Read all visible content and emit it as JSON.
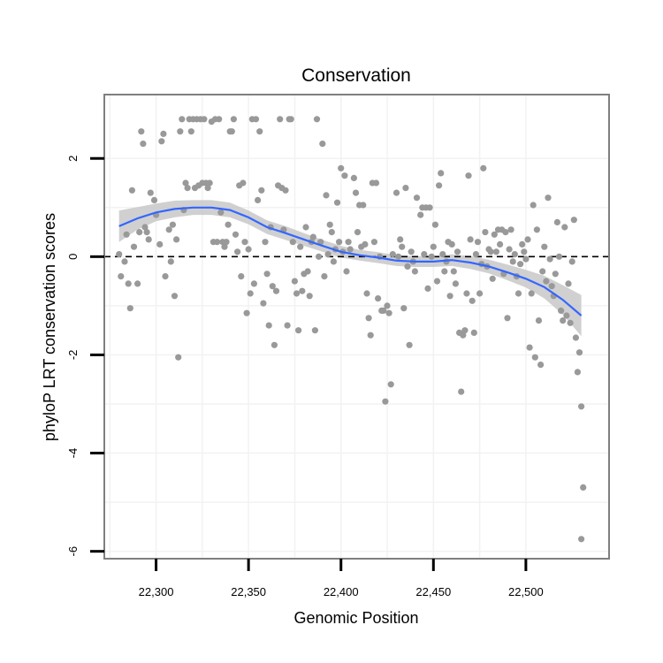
{
  "chart_data": {
    "type": "scatter",
    "title": "Conservation",
    "xlabel": "Genomic Position",
    "ylabel": "phyloP LRT conservation scores",
    "xlim": [
      22272,
      22545
    ],
    "ylim": [
      -6.15,
      3.3
    ],
    "x_ticks": [
      22300,
      22350,
      22400,
      22450,
      22500
    ],
    "x_tick_labels": [
      "22,300",
      "22,350",
      "22,400",
      "22,450",
      "22,500"
    ],
    "y_ticks": [
      -6,
      -4,
      -2,
      0,
      2
    ],
    "y_tick_labels": [
      "-6",
      "-4",
      "-2",
      "0",
      "2"
    ],
    "reference_line": {
      "y": 0,
      "style": "dashed"
    },
    "colors": {
      "points": "#999999",
      "smooth": "#3366ff",
      "band": "#c8c8c8",
      "frame": "#7f7f7f",
      "grid": "#f2f2f2"
    },
    "grid": true,
    "points": [
      [
        22280,
        0.05
      ],
      [
        22281,
        -0.4
      ],
      [
        22283,
        -0.1
      ],
      [
        22284,
        0.45
      ],
      [
        22285,
        -0.55
      ],
      [
        22286,
        -1.05
      ],
      [
        22287,
        1.35
      ],
      [
        22288,
        0.2
      ],
      [
        22290,
        -0.55
      ],
      [
        22291,
        0.5
      ],
      [
        22292,
        2.55
      ],
      [
        22293,
        2.3
      ],
      [
        22294,
        0.6
      ],
      [
        22295,
        0.5
      ],
      [
        22296,
        0.35
      ],
      [
        22297,
        1.3
      ],
      [
        22299,
        1.15
      ],
      [
        22300,
        0.85
      ],
      [
        22302,
        0.25
      ],
      [
        22303,
        2.35
      ],
      [
        22304,
        2.5
      ],
      [
        22305,
        -0.4
      ],
      [
        22307,
        0.55
      ],
      [
        22308,
        -0.1
      ],
      [
        22309,
        0.65
      ],
      [
        22310,
        -0.8
      ],
      [
        22311,
        0.35
      ],
      [
        22312,
        -2.05
      ],
      [
        22313,
        2.55
      ],
      [
        22314,
        2.8
      ],
      [
        22315,
        0.95
      ],
      [
        22316,
        1.5
      ],
      [
        22317,
        1.4
      ],
      [
        22318,
        2.8
      ],
      [
        22319,
        2.55
      ],
      [
        22320,
        2.8
      ],
      [
        22321,
        1.4
      ],
      [
        22322,
        2.8
      ],
      [
        22323,
        1.45
      ],
      [
        22324,
        2.8
      ],
      [
        22325,
        1.5
      ],
      [
        22326,
        2.8
      ],
      [
        22327,
        1.5
      ],
      [
        22328,
        1.4
      ],
      [
        22329,
        1.5
      ],
      [
        22330,
        2.75
      ],
      [
        22331,
        0.3
      ],
      [
        22332,
        2.8
      ],
      [
        22333,
        0.3
      ],
      [
        22334,
        2.8
      ],
      [
        22335,
        0.9
      ],
      [
        22336,
        0.3
      ],
      [
        22337,
        0.2
      ],
      [
        22338,
        0.3
      ],
      [
        22339,
        0.65
      ],
      [
        22340,
        2.55
      ],
      [
        22341,
        2.55
      ],
      [
        22342,
        2.8
      ],
      [
        22343,
        0.45
      ],
      [
        22344,
        0.1
      ],
      [
        22345,
        1.45
      ],
      [
        22346,
        -0.4
      ],
      [
        22347,
        1.5
      ],
      [
        22348,
        0.3
      ],
      [
        22349,
        -1.15
      ],
      [
        22350,
        0.15
      ],
      [
        22351,
        -0.75
      ],
      [
        22352,
        2.8
      ],
      [
        22353,
        -0.55
      ],
      [
        22354,
        2.8
      ],
      [
        22355,
        1.15
      ],
      [
        22356,
        2.55
      ],
      [
        22357,
        1.35
      ],
      [
        22358,
        -0.95
      ],
      [
        22359,
        0.3
      ],
      [
        22360,
        -0.35
      ],
      [
        22361,
        -1.4
      ],
      [
        22362,
        0.6
      ],
      [
        22363,
        -0.6
      ],
      [
        22364,
        -1.8
      ],
      [
        22365,
        -0.7
      ],
      [
        22366,
        1.45
      ],
      [
        22367,
        2.8
      ],
      [
        22368,
        1.4
      ],
      [
        22369,
        0.55
      ],
      [
        22370,
        1.35
      ],
      [
        22371,
        -1.4
      ],
      [
        22372,
        2.8
      ],
      [
        22373,
        2.8
      ],
      [
        22374,
        0.3
      ],
      [
        22375,
        -0.5
      ],
      [
        22376,
        -0.75
      ],
      [
        22377,
        -1.5
      ],
      [
        22378,
        0.2
      ],
      [
        22379,
        -0.7
      ],
      [
        22380,
        -0.35
      ],
      [
        22381,
        0.6
      ],
      [
        22382,
        -0.3
      ],
      [
        22383,
        -0.8
      ],
      [
        22384,
        0.3
      ],
      [
        22385,
        0.4
      ],
      [
        22386,
        -1.5
      ],
      [
        22387,
        2.8
      ],
      [
        22388,
        0.0
      ],
      [
        22389,
        0.3
      ],
      [
        22390,
        2.3
      ],
      [
        22391,
        -0.4
      ],
      [
        22392,
        1.25
      ],
      [
        22393,
        0.05
      ],
      [
        22394,
        0.65
      ],
      [
        22395,
        0.5
      ],
      [
        22396,
        -0.1
      ],
      [
        22397,
        0.15
      ],
      [
        22398,
        1.1
      ],
      [
        22399,
        0.3
      ],
      [
        22400,
        1.8
      ],
      [
        22401,
        0.1
      ],
      [
        22402,
        1.65
      ],
      [
        22403,
        -0.3
      ],
      [
        22404,
        0.3
      ],
      [
        22405,
        0.15
      ],
      [
        22407,
        1.6
      ],
      [
        22408,
        1.3
      ],
      [
        22409,
        0.5
      ],
      [
        22410,
        1.05
      ],
      [
        22411,
        0.2
      ],
      [
        22412,
        1.05
      ],
      [
        22413,
        0.25
      ],
      [
        22414,
        -0.75
      ],
      [
        22415,
        -1.25
      ],
      [
        22416,
        -1.6
      ],
      [
        22417,
        1.5
      ],
      [
        22418,
        0.3
      ],
      [
        22419,
        1.5
      ],
      [
        22420,
        -0.85
      ],
      [
        22421,
        0.0
      ],
      [
        22422,
        -1.1
      ],
      [
        22423,
        -1.1
      ],
      [
        22424,
        -2.95
      ],
      [
        22425,
        -1.0
      ],
      [
        22426,
        -1.15
      ],
      [
        22427,
        -2.6
      ],
      [
        22428,
        0.05
      ],
      [
        22430,
        1.3
      ],
      [
        22431,
        0.0
      ],
      [
        22432,
        0.35
      ],
      [
        22433,
        0.2
      ],
      [
        22434,
        -1.05
      ],
      [
        22435,
        1.4
      ],
      [
        22436,
        -0.2
      ],
      [
        22437,
        -1.8
      ],
      [
        22438,
        0.1
      ],
      [
        22439,
        -0.1
      ],
      [
        22440,
        -0.3
      ],
      [
        22441,
        1.2
      ],
      [
        22443,
        0.85
      ],
      [
        22444,
        1.0
      ],
      [
        22445,
        0.05
      ],
      [
        22446,
        1.0
      ],
      [
        22447,
        -0.65
      ],
      [
        22448,
        1.0
      ],
      [
        22449,
        0.0
      ],
      [
        22450,
        0.2
      ],
      [
        22451,
        0.65
      ],
      [
        22452,
        -0.5
      ],
      [
        22453,
        1.45
      ],
      [
        22454,
        1.7
      ],
      [
        22455,
        0.05
      ],
      [
        22456,
        -0.3
      ],
      [
        22457,
        -0.1
      ],
      [
        22458,
        0.3
      ],
      [
        22459,
        -0.8
      ],
      [
        22460,
        0.25
      ],
      [
        22461,
        -0.3
      ],
      [
        22462,
        -0.55
      ],
      [
        22463,
        0.1
      ],
      [
        22464,
        -1.55
      ],
      [
        22465,
        -2.75
      ],
      [
        22466,
        -1.6
      ],
      [
        22467,
        -1.5
      ],
      [
        22468,
        -0.75
      ],
      [
        22469,
        1.65
      ],
      [
        22470,
        0.35
      ],
      [
        22471,
        -0.9
      ],
      [
        22472,
        -1.55
      ],
      [
        22473,
        0.05
      ],
      [
        22474,
        0.3
      ],
      [
        22475,
        -0.75
      ],
      [
        22476,
        -0.15
      ],
      [
        22477,
        1.8
      ],
      [
        22478,
        0.5
      ],
      [
        22479,
        -0.2
      ],
      [
        22480,
        0.15
      ],
      [
        22481,
        0.1
      ],
      [
        22482,
        -0.45
      ],
      [
        22483,
        0.45
      ],
      [
        22484,
        0.1
      ],
      [
        22485,
        0.55
      ],
      [
        22486,
        0.25
      ],
      [
        22487,
        0.55
      ],
      [
        22488,
        -0.35
      ],
      [
        22489,
        0.5
      ],
      [
        22490,
        -1.25
      ],
      [
        22491,
        0.15
      ],
      [
        22492,
        0.55
      ],
      [
        22493,
        -0.1
      ],
      [
        22494,
        0.05
      ],
      [
        22495,
        -0.4
      ],
      [
        22496,
        -0.75
      ],
      [
        22497,
        -0.15
      ],
      [
        22498,
        0.25
      ],
      [
        22499,
        0.1
      ],
      [
        22500,
        -0.05
      ],
      [
        22501,
        0.35
      ],
      [
        22502,
        -1.85
      ],
      [
        22503,
        -0.75
      ],
      [
        22504,
        1.05
      ],
      [
        22505,
        -2.05
      ],
      [
        22506,
        0.55
      ],
      [
        22507,
        -1.3
      ],
      [
        22508,
        -2.2
      ],
      [
        22509,
        -0.3
      ],
      [
        22510,
        0.2
      ],
      [
        22511,
        -0.5
      ],
      [
        22512,
        1.2
      ],
      [
        22513,
        -0.05
      ],
      [
        22514,
        -0.6
      ],
      [
        22515,
        -0.8
      ],
      [
        22516,
        -0.35
      ],
      [
        22517,
        0.7
      ],
      [
        22518,
        0.0
      ],
      [
        22519,
        -1.1
      ],
      [
        22520,
        -1.3
      ],
      [
        22521,
        0.6
      ],
      [
        22522,
        -1.2
      ],
      [
        22523,
        -0.55
      ],
      [
        22524,
        -1.35
      ],
      [
        22525,
        -0.1
      ],
      [
        22526,
        0.75
      ],
      [
        22527,
        -1.65
      ],
      [
        22528,
        -2.35
      ],
      [
        22529,
        -1.95
      ],
      [
        22530,
        -3.05
      ],
      [
        22531,
        -4.7
      ],
      [
        22530,
        -5.75
      ]
    ],
    "smooth_fit": {
      "x": [
        22280,
        22290,
        22300,
        22310,
        22320,
        22330,
        22340,
        22350,
        22360,
        22370,
        22380,
        22390,
        22400,
        22410,
        22420,
        22430,
        22440,
        22450,
        22460,
        22470,
        22480,
        22490,
        22500,
        22510,
        22520,
        22530
      ],
      "y": [
        0.62,
        0.78,
        0.9,
        0.97,
        1.0,
        1.0,
        0.95,
        0.8,
        0.6,
        0.48,
        0.35,
        0.22,
        0.1,
        0.03,
        -0.02,
        -0.08,
        -0.1,
        -0.1,
        -0.07,
        -0.12,
        -0.2,
        -0.32,
        -0.45,
        -0.62,
        -0.88,
        -1.2
      ],
      "lower": [
        0.3,
        0.55,
        0.72,
        0.8,
        0.85,
        0.85,
        0.8,
        0.66,
        0.46,
        0.34,
        0.22,
        0.1,
        -0.02,
        -0.08,
        -0.13,
        -0.19,
        -0.21,
        -0.21,
        -0.19,
        -0.25,
        -0.34,
        -0.48,
        -0.63,
        -0.85,
        -1.18,
        -1.62
      ],
      "upper": [
        0.94,
        1.01,
        1.08,
        1.14,
        1.15,
        1.15,
        1.1,
        0.94,
        0.74,
        0.62,
        0.48,
        0.34,
        0.22,
        0.14,
        0.09,
        0.03,
        0.01,
        0.01,
        0.05,
        0.01,
        -0.06,
        -0.16,
        -0.27,
        -0.39,
        -0.58,
        -0.78
      ]
    }
  }
}
